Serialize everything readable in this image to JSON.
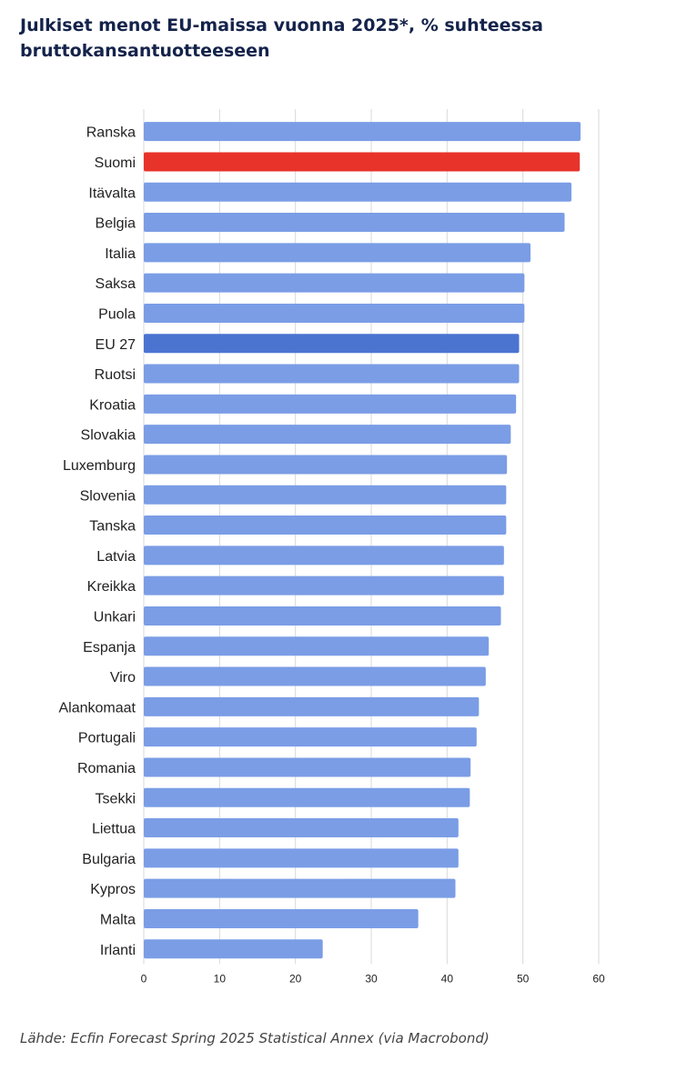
{
  "header": {
    "title": "Julkiset menot EU-maissa vuonna 2025*, % suhteessa bruttokansantuotteeseen"
  },
  "footer": {
    "source": "Lähde: Ecfin Forecast Spring 2025 Statistical Annex (via Macrobond)"
  },
  "colors": {
    "default_bar": "#7b9de6",
    "highlight_finland": "#e8332a",
    "highlight_eu": "#4b74d1",
    "grid": "#d9d9d9",
    "text": "#222222"
  },
  "chart_data": {
    "type": "bar",
    "orientation": "horizontal",
    "title": "Julkiset menot EU-maissa vuonna 2025*, % suhteessa bruttokansantuotteeseen",
    "xlabel": "",
    "ylabel": "",
    "xlim": [
      0,
      60
    ],
    "xticks": [
      0,
      10,
      20,
      30,
      40,
      50,
      60
    ],
    "grid": true,
    "legend": "none",
    "categories": [
      "Ranska",
      "Suomi",
      "Itävalta",
      "Belgia",
      "Italia",
      "Saksa",
      "Puola",
      "EU 27",
      "Ruotsi",
      "Kroatia",
      "Slovakia",
      "Luxemburg",
      "Slovenia",
      "Tanska",
      "Latvia",
      "Kreikka",
      "Unkari",
      "Espanja",
      "Viro",
      "Alankomaat",
      "Portugali",
      "Romania",
      "Tsekki",
      "Liettua",
      "Bulgaria",
      "Kypros",
      "Malta",
      "Irlanti"
    ],
    "values": [
      57.6,
      57.5,
      56.4,
      55.5,
      51.0,
      50.2,
      50.2,
      49.5,
      49.5,
      49.1,
      48.4,
      47.9,
      47.8,
      47.8,
      47.5,
      47.5,
      47.1,
      45.5,
      45.1,
      44.2,
      43.9,
      43.1,
      43.0,
      41.5,
      41.5,
      41.1,
      36.2,
      23.6
    ],
    "highlights": {
      "Suomi": "#e8332a",
      "EU 27": "#4b74d1"
    }
  }
}
